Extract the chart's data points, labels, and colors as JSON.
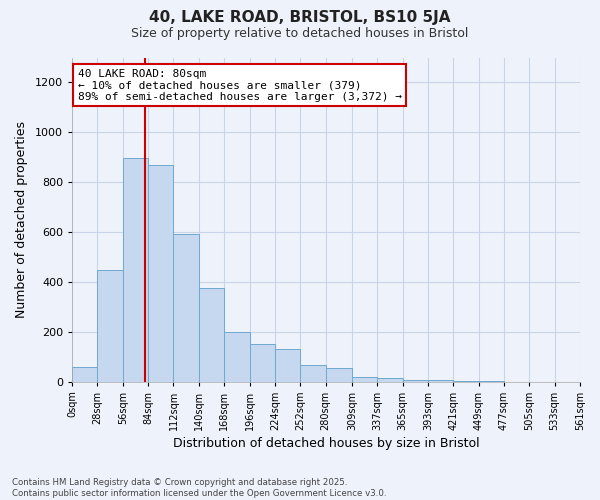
{
  "title1": "40, LAKE ROAD, BRISTOL, BS10 5JA",
  "title2": "Size of property relative to detached houses in Bristol",
  "xlabel": "Distribution of detached houses by size in Bristol",
  "ylabel": "Number of detached properties",
  "annotation_title": "40 LAKE ROAD: 80sqm",
  "annotation_line1": "← 10% of detached houses are smaller (379)",
  "annotation_line2": "89% of semi-detached houses are larger (3,372) →",
  "footer1": "Contains HM Land Registry data © Crown copyright and database right 2025.",
  "footer2": "Contains public sector information licensed under the Open Government Licence v3.0.",
  "bar_color": "#c5d8f0",
  "bar_edge_color": "#6fa8d0",
  "grid_color": "#c8d4e8",
  "background_color": "#eef2fa",
  "subject_line_color": "#cc0000",
  "annotation_box_color": "#ffffff",
  "annotation_box_edge": "#cc0000",
  "bins": [
    0,
    28,
    56,
    84,
    112,
    140,
    168,
    196,
    224,
    252,
    280,
    309,
    337,
    365,
    393,
    421,
    449,
    477,
    505,
    533,
    561
  ],
  "bin_labels": [
    "0sqm",
    "28sqm",
    "56sqm",
    "84sqm",
    "112sqm",
    "140sqm",
    "168sqm",
    "196sqm",
    "224sqm",
    "252sqm",
    "280sqm",
    "309sqm",
    "337sqm",
    "365sqm",
    "393sqm",
    "421sqm",
    "449sqm",
    "477sqm",
    "505sqm",
    "533sqm",
    "561sqm"
  ],
  "counts": [
    60,
    447,
    895,
    870,
    590,
    375,
    200,
    150,
    130,
    65,
    55,
    20,
    15,
    5,
    5,
    2,
    2,
    0,
    0,
    0
  ],
  "subject_size": 80,
  "ylim": [
    0,
    1300
  ],
  "yticks": [
    0,
    200,
    400,
    600,
    800,
    1000,
    1200
  ]
}
